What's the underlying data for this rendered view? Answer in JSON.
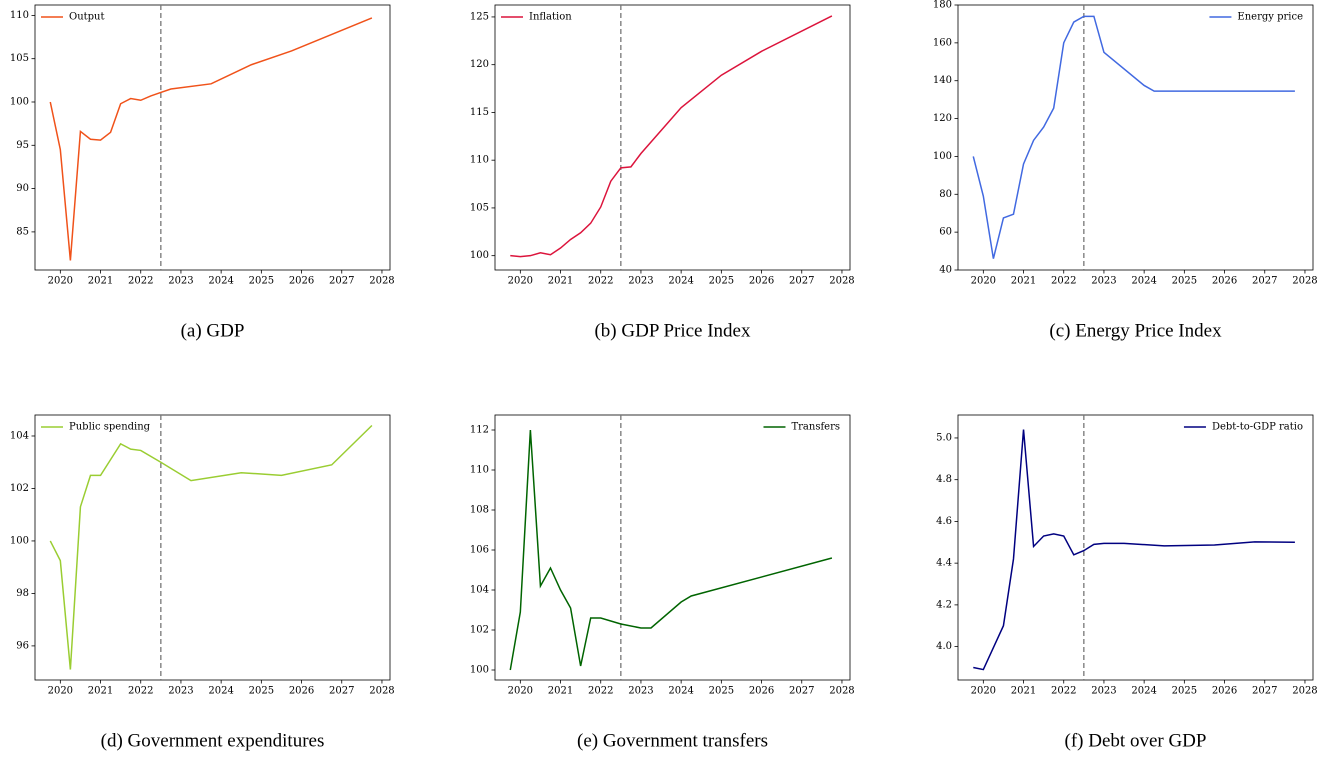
{
  "chart_data": [
    {
      "type": "line",
      "caption": "(a) GDP",
      "legend": "upper left",
      "vline": 2022.5,
      "x": [
        2019.75,
        2020,
        2020.25,
        2020.5,
        2020.75,
        2021,
        2021.25,
        2021.5,
        2021.75,
        2022,
        2022.25,
        2022.5,
        2022.75,
        2023.75,
        2024.75,
        2025.75,
        2026.75,
        2027.75
      ],
      "series": [
        {
          "name": "Output",
          "color": "#f0521a",
          "values": [
            100,
            94.5,
            81.7,
            96.6,
            95.7,
            95.6,
            96.5,
            99.8,
            100.4,
            100.2,
            100.7,
            101.1,
            101.5,
            102.1,
            104.3,
            105.9,
            107.8,
            109.7
          ]
        }
      ],
      "xlim": [
        2019.37,
        2028.2
      ],
      "xticks": [
        2020,
        2021,
        2022,
        2023,
        2024,
        2025,
        2026,
        2027,
        2028
      ],
      "ylim": [
        80.6,
        111.2
      ],
      "yticks": [
        85,
        90,
        95,
        100,
        105,
        110
      ]
    },
    {
      "type": "line",
      "caption": "(b) GDP Price Index",
      "legend": "upper left",
      "vline": 2022.5,
      "x": [
        2019.75,
        2020,
        2020.25,
        2020.5,
        2020.75,
        2021,
        2021.25,
        2021.5,
        2021.75,
        2022,
        2022.25,
        2022.5,
        2022.75,
        2023,
        2024,
        2025,
        2026,
        2027.75
      ],
      "series": [
        {
          "name": "Inflation",
          "color": "#dc143c",
          "values": [
            100,
            99.9,
            100.0,
            100.3,
            100.1,
            100.8,
            101.7,
            102.4,
            103.4,
            105.1,
            107.8,
            109.2,
            109.3,
            110.7,
            115.5,
            118.9,
            121.4,
            125.1
          ]
        }
      ],
      "xlim": [
        2019.37,
        2028.2
      ],
      "xticks": [
        2020,
        2021,
        2022,
        2023,
        2024,
        2025,
        2026,
        2027,
        2028
      ],
      "ylim": [
        98.5,
        126.25
      ],
      "yticks": [
        100,
        105,
        110,
        115,
        120,
        125
      ]
    },
    {
      "type": "line",
      "caption": "(c) Energy Price Index",
      "legend": "upper right",
      "vline": 2022.5,
      "x": [
        2019.75,
        2020,
        2020.25,
        2020.5,
        2020.75,
        2021,
        2021.25,
        2021.5,
        2021.75,
        2022,
        2022.25,
        2022.5,
        2022.75,
        2023,
        2024,
        2024.25,
        2027.75
      ],
      "series": [
        {
          "name": "Energy price",
          "color": "#4169e1",
          "values": [
            100,
            79,
            46,
            67.5,
            69.5,
            96,
            108.5,
            115.5,
            125.5,
            160,
            171,
            174,
            174,
            155,
            137.5,
            134.5,
            134.5
          ]
        }
      ],
      "xlim": [
        2019.37,
        2028.2
      ],
      "xticks": [
        2020,
        2021,
        2022,
        2023,
        2024,
        2025,
        2026,
        2027,
        2028
      ],
      "ylim": [
        40,
        180
      ],
      "yticks": [
        40,
        60,
        80,
        100,
        120,
        140,
        160,
        180
      ]
    },
    {
      "type": "line",
      "caption": "(d) Government expenditures",
      "legend": "upper left",
      "vline": 2022.5,
      "x": [
        2019.75,
        2020,
        2020.25,
        2020.5,
        2020.75,
        2021,
        2021.25,
        2021.5,
        2021.75,
        2022,
        2022.5,
        2023.25,
        2024.5,
        2025.5,
        2026.75,
        2027.75
      ],
      "series": [
        {
          "name": "Public spending",
          "color": "#9acd32",
          "values": [
            100,
            99.25,
            95.1,
            101.3,
            102.5,
            102.5,
            103.1,
            103.7,
            103.5,
            103.45,
            103.0,
            102.3,
            102.6,
            102.5,
            102.9,
            104.4
          ]
        }
      ],
      "xlim": [
        2019.37,
        2028.2
      ],
      "xticks": [
        2020,
        2021,
        2022,
        2023,
        2024,
        2025,
        2026,
        2027,
        2028
      ],
      "ylim": [
        94.7,
        104.8
      ],
      "yticks": [
        96,
        98,
        100,
        102,
        104
      ]
    },
    {
      "type": "line",
      "caption": "(e) Government transfers",
      "legend": "upper right",
      "vline": 2022.5,
      "x": [
        2019.75,
        2020,
        2020.25,
        2020.5,
        2020.75,
        2021,
        2021.25,
        2021.5,
        2021.75,
        2022,
        2022.5,
        2023,
        2023.25,
        2024,
        2024.25,
        2027.75
      ],
      "series": [
        {
          "name": "Transfers",
          "color": "#006400",
          "values": [
            100,
            102.9,
            112.0,
            104.2,
            105.1,
            104,
            103.1,
            100.2,
            102.6,
            102.6,
            102.3,
            102.1,
            102.1,
            103.4,
            103.7,
            105.6
          ]
        }
      ],
      "xlim": [
        2019.37,
        2028.2
      ],
      "xticks": [
        2020,
        2021,
        2022,
        2023,
        2024,
        2025,
        2026,
        2027,
        2028
      ],
      "ylim": [
        99.5,
        112.75
      ],
      "yticks": [
        100,
        102,
        104,
        106,
        108,
        110,
        112
      ]
    },
    {
      "type": "line",
      "caption": "(f) Debt over GDP",
      "legend": "upper right",
      "vline": 2022.5,
      "x": [
        2019.75,
        2020,
        2020.5,
        2020.75,
        2021,
        2021.25,
        2021.5,
        2021.75,
        2022,
        2022.25,
        2022.5,
        2022.75,
        2023,
        2023.5,
        2024.5,
        2025.75,
        2026.75,
        2027.75
      ],
      "series": [
        {
          "name": "Debt-to-GDP ratio",
          "color": "#000080",
          "values": [
            3.9,
            3.89,
            4.1,
            4.42,
            5.04,
            4.48,
            4.53,
            4.54,
            4.53,
            4.44,
            4.46,
            4.49,
            4.495,
            4.495,
            4.483,
            4.487,
            4.502,
            4.5
          ]
        }
      ],
      "xlim": [
        2019.37,
        2028.2
      ],
      "xticks": [
        2020,
        2021,
        2022,
        2023,
        2024,
        2025,
        2026,
        2027,
        2028
      ],
      "ylim": [
        3.84,
        5.11
      ],
      "yticks": [
        {
          "value": 4.0,
          "label": "4.0"
        },
        4.2,
        4.4,
        4.6,
        4.8,
        {
          "value": 5.0,
          "label": "5.0"
        }
      ]
    }
  ]
}
